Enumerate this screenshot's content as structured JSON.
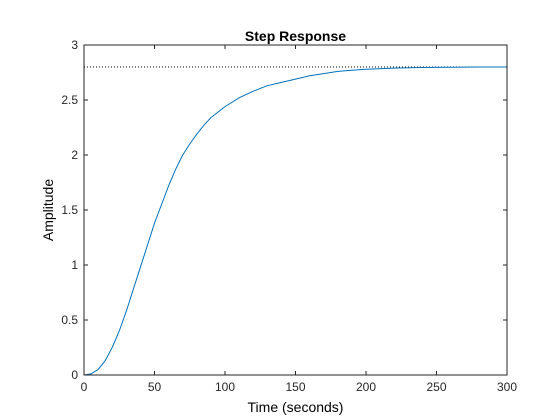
{
  "chart_data": {
    "type": "line",
    "title": "Step Response",
    "xlabel": "Time (seconds)",
    "ylabel": "Amplitude",
    "xlim": [
      0,
      300
    ],
    "ylim": [
      0,
      3
    ],
    "xticks": [
      "0",
      "50",
      "100",
      "150",
      "200",
      "250",
      "300"
    ],
    "yticks": [
      "0",
      "0.5",
      "1",
      "1.5",
      "2",
      "2.5",
      "3"
    ],
    "grid": false,
    "steady_state": 2.8,
    "series": [
      {
        "color": "#0072BD",
        "x": [
          0,
          5,
          10,
          15,
          20,
          25,
          30,
          35,
          40,
          45,
          50,
          55,
          60,
          65,
          70,
          75,
          80,
          85,
          90,
          95,
          100,
          110,
          120,
          130,
          140,
          150,
          160,
          170,
          180,
          190,
          200,
          220,
          240,
          260,
          280,
          300
        ],
        "y": [
          0,
          0.01,
          0.05,
          0.13,
          0.25,
          0.4,
          0.58,
          0.78,
          0.98,
          1.18,
          1.38,
          1.55,
          1.72,
          1.87,
          2.0,
          2.1,
          2.19,
          2.27,
          2.34,
          2.39,
          2.44,
          2.52,
          2.58,
          2.63,
          2.66,
          2.69,
          2.72,
          2.74,
          2.76,
          2.77,
          2.78,
          2.79,
          2.795,
          2.798,
          2.8,
          2.8
        ]
      }
    ],
    "reference_line": {
      "y": 2.8,
      "style": "dotted",
      "color": "#000000"
    }
  }
}
